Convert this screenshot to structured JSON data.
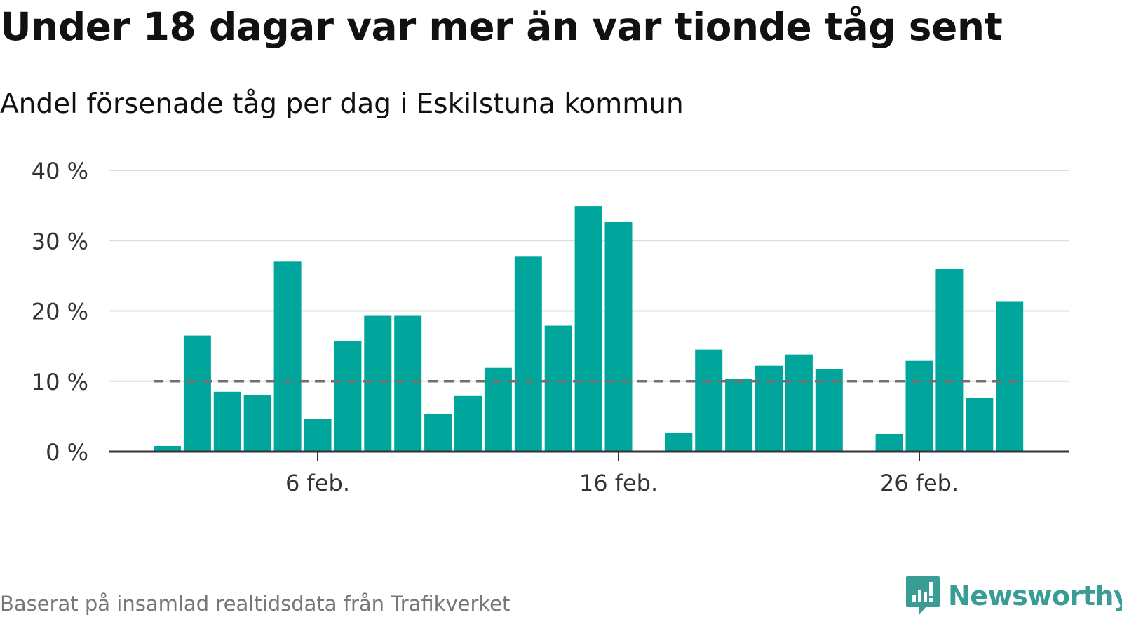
{
  "title": "Under 18 dagar var mer än var tionde tåg sent",
  "subtitle": "Andel försenade tåg per dag i Eskilstuna kommun",
  "footer": {
    "source": "Baserat på insamlad realtidsdata från Trafikverket",
    "brand": "Newsworthy"
  },
  "colors": {
    "bar": "#00a69c",
    "reference_line": "#707070",
    "grid": "#dddddd",
    "axis": "#333333",
    "brand": "#3a9d95"
  },
  "chart_data": {
    "type": "bar",
    "x_unit": "day",
    "categories": [
      "1 feb.",
      "2 feb.",
      "3 feb.",
      "4 feb.",
      "5 feb.",
      "6 feb.",
      "7 feb.",
      "8 feb.",
      "9 feb.",
      "10 feb.",
      "11 feb.",
      "12 feb.",
      "13 feb.",
      "14 feb.",
      "15 feb.",
      "16 feb.",
      "17 feb.",
      "18 feb.",
      "19 feb.",
      "20 feb.",
      "21 feb.",
      "22 feb.",
      "23 feb.",
      "24 feb.",
      "25 feb.",
      "26 feb.",
      "27 feb.",
      "28 feb.",
      "29 feb."
    ],
    "values": [
      0.8,
      16.5,
      8.5,
      8.0,
      27.1,
      4.6,
      15.7,
      19.3,
      19.3,
      5.3,
      7.9,
      11.9,
      27.8,
      17.9,
      34.9,
      32.7,
      null,
      2.6,
      14.5,
      10.3,
      12.2,
      13.8,
      11.7,
      null,
      2.5,
      12.9,
      26.0,
      7.6,
      21.3
    ],
    "reference_value": 10,
    "ylim": [
      0,
      40
    ],
    "y_ticks": [
      0,
      10,
      20,
      30,
      40
    ],
    "y_tick_labels": [
      "0 %",
      "10 %",
      "20 %",
      "30 %",
      "40 %"
    ],
    "x_tick_labels": [
      {
        "category": "6 feb.",
        "label": "6 feb."
      },
      {
        "category": "16 feb.",
        "label": "16 feb."
      },
      {
        "category": "26 feb.",
        "label": "26 feb."
      }
    ],
    "xlabel": "",
    "ylabel": "",
    "grid": true,
    "legend": "none"
  }
}
